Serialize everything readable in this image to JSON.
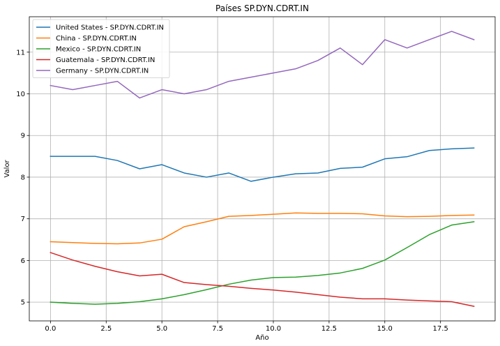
{
  "chart_data": {
    "type": "line",
    "title": "Países SP.DYN.CDRT.IN",
    "xlabel": "Año",
    "ylabel": "Valor",
    "xlim": [
      -0.95,
      19.95
    ],
    "ylim": [
      4.55,
      11.85
    ],
    "xticks": [
      0.0,
      2.5,
      5.0,
      7.5,
      10.0,
      12.5,
      15.0,
      17.5
    ],
    "xtick_labels": [
      "0.0",
      "2.5",
      "5.0",
      "7.5",
      "10.0",
      "12.5",
      "15.0",
      "17.5"
    ],
    "yticks": [
      5,
      6,
      7,
      8,
      9,
      10,
      11
    ],
    "ytick_labels": [
      "5",
      "6",
      "7",
      "8",
      "9",
      "10",
      "11"
    ],
    "grid": true,
    "legend_position": "upper-left",
    "x": [
      0,
      1,
      2,
      3,
      4,
      5,
      6,
      7,
      8,
      9,
      10,
      11,
      12,
      13,
      14,
      15,
      16,
      17,
      18,
      19
    ],
    "series": [
      {
        "name": "United States - SP.DYN.CDRT.IN",
        "color": "#1f77b4",
        "values": [
          8.5,
          8.5,
          8.5,
          8.4,
          8.2,
          8.3,
          8.1,
          8.0,
          8.1,
          7.9,
          8.0,
          8.08,
          8.1,
          8.21,
          8.24,
          8.44,
          8.49,
          8.64,
          8.68,
          8.7
        ]
      },
      {
        "name": "China - SP.DYN.CDRT.IN",
        "color": "#ff7f0e",
        "values": [
          6.45,
          6.43,
          6.41,
          6.4,
          6.42,
          6.51,
          6.81,
          6.93,
          7.06,
          7.08,
          7.11,
          7.14,
          7.13,
          7.13,
          7.12,
          7.07,
          7.05,
          7.06,
          7.08,
          7.09
        ]
      },
      {
        "name": "Mexico - SP.DYN.CDRT.IN",
        "color": "#2ca02c",
        "values": [
          5.0,
          4.97,
          4.95,
          4.97,
          5.01,
          5.08,
          5.18,
          5.3,
          5.43,
          5.53,
          5.59,
          5.6,
          5.64,
          5.7,
          5.81,
          6.01,
          6.31,
          6.62,
          6.85,
          6.93
        ]
      },
      {
        "name": "Guatemala - SP.DYN.CDRT.IN",
        "color": "#d62728",
        "values": [
          6.19,
          6.01,
          5.86,
          5.73,
          5.63,
          5.67,
          5.47,
          5.42,
          5.38,
          5.33,
          5.29,
          5.24,
          5.18,
          5.12,
          5.08,
          5.08,
          5.05,
          5.03,
          5.01,
          4.9
        ]
      },
      {
        "name": "Germany - SP.DYN.CDRT.IN",
        "color": "#9467bd",
        "values": [
          10.2,
          10.1,
          10.2,
          10.3,
          9.9,
          10.1,
          10.0,
          10.1,
          10.3,
          10.4,
          10.5,
          10.6,
          10.8,
          11.1,
          10.7,
          11.3,
          11.1,
          11.3,
          11.5,
          11.3
        ]
      }
    ]
  }
}
